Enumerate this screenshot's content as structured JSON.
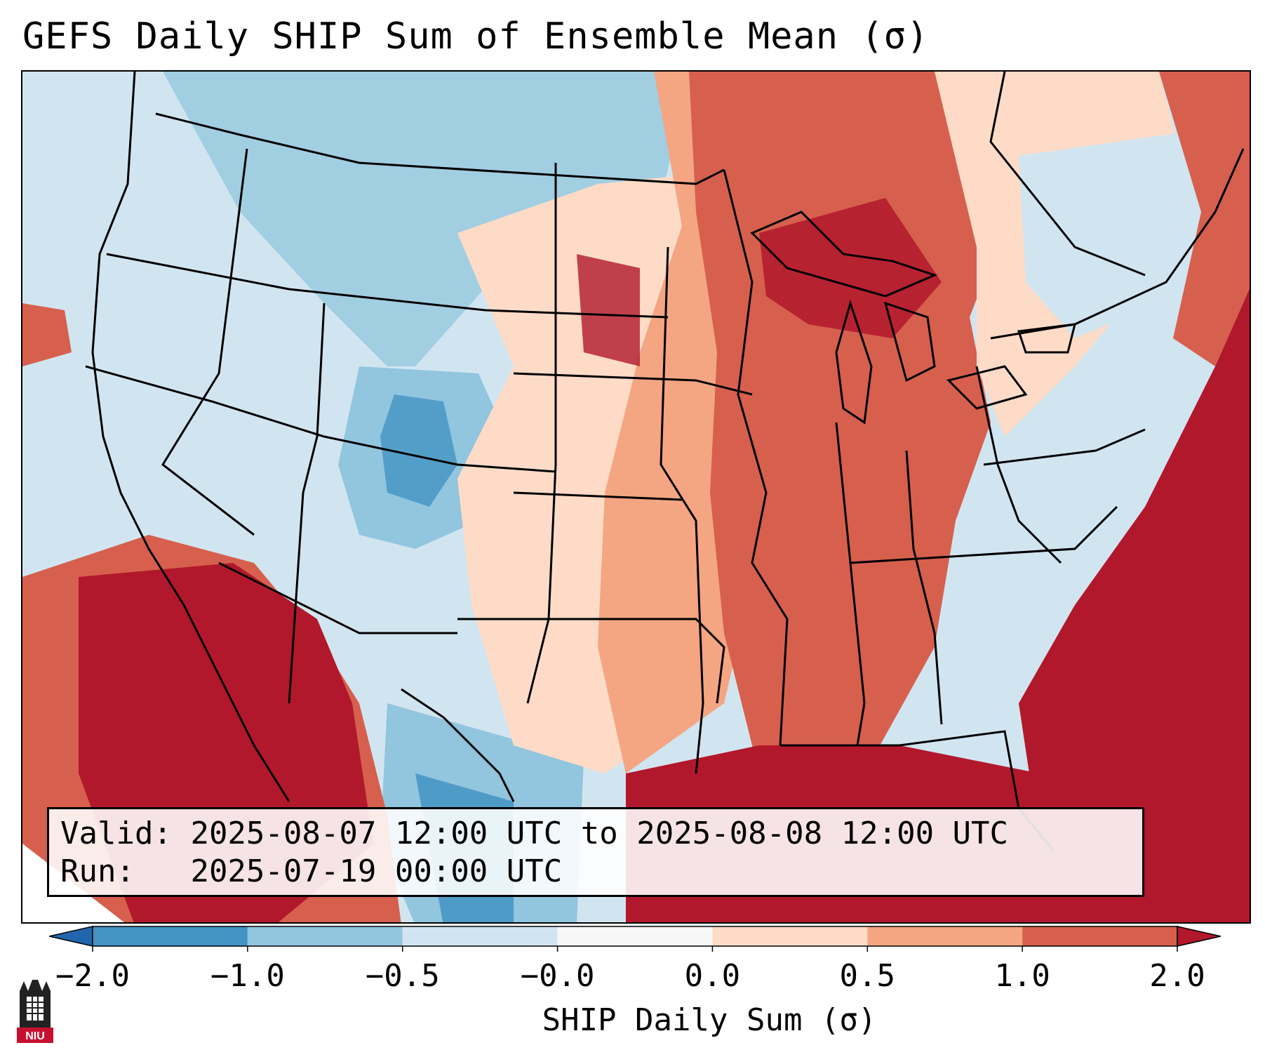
{
  "title": "GEFS Daily SHIP Sum of Ensemble Mean (σ)",
  "info": {
    "valid_label": "Valid:",
    "valid_value": "2025-08-07 12:00 UTC to 2025-08-08 12:00 UTC",
    "run_label": "Run:",
    "run_value": "2025-07-19 00:00 UTC"
  },
  "colorbar": {
    "label": "SHIP Daily Sum (σ)",
    "ticks": [
      "−2.0",
      "−1.0",
      "−0.5",
      "−0.0",
      "0.0",
      "0.5",
      "1.0",
      "2.0"
    ],
    "colors": [
      "#4393c3",
      "#92c5de",
      "#d1e5f0",
      "#f7f7f7",
      "#fddbc7",
      "#f4a582",
      "#d6604d"
    ],
    "under_color": "#2166ac",
    "over_color": "#b2182b"
  },
  "logo": {
    "text": "NIU"
  }
}
